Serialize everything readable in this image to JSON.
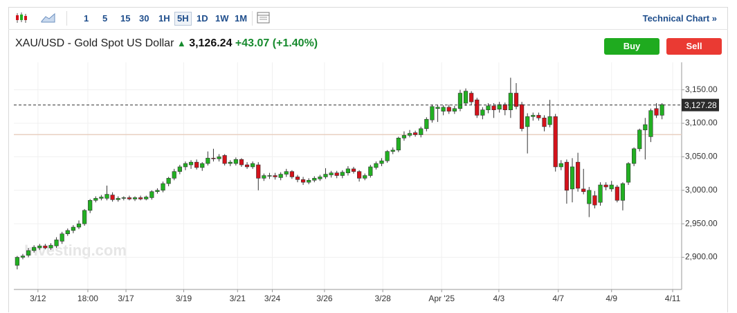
{
  "toolbar": {
    "intervals": [
      "1",
      "5",
      "15",
      "30",
      "1H",
      "5H",
      "1D",
      "1W",
      "1M"
    ],
    "active": "5H",
    "link": "Technical Chart »"
  },
  "instrument": {
    "name": "XAU/USD - Gold Spot US Dollar",
    "price": "3,126.24",
    "change": "+43.07",
    "change_pct": "(+1.40%)"
  },
  "buttons": {
    "buy": "Buy",
    "sell": "Sell"
  },
  "chart_data": {
    "type": "candlestick",
    "watermark": "Investing.com",
    "up_color": "#22b022",
    "down_color": "#d4121b",
    "open": [
      2888,
      2900,
      2903,
      2910,
      2914,
      2917,
      2914,
      2917,
      2924,
      2935,
      2940,
      2945,
      2950,
      2970,
      2985,
      2988,
      2988,
      2993,
      2986,
      2988,
      2989,
      2987,
      2989,
      2987,
      2989,
      2998,
      3000,
      3010,
      3018,
      3028,
      3035,
      3038,
      3042,
      3034,
      3040,
      3048,
      3047,
      3052,
      3040,
      3040,
      3046,
      3038,
      3035,
      3038,
      3018,
      3021,
      3022,
      3019,
      3024,
      3028,
      3020,
      3016,
      3012,
      3015,
      3017,
      3020,
      3023,
      3026,
      3022,
      3026,
      3032,
      3028,
      3018,
      3022,
      3034,
      3040,
      3044,
      3058,
      3060,
      3078,
      3082,
      3086,
      3083,
      3092,
      3105,
      3122,
      3118,
      3124,
      3118,
      3122,
      3130,
      3145,
      3135,
      3112,
      3120,
      3126,
      3121,
      3128,
      3120,
      3145,
      3128,
      3095,
      3110,
      3112,
      3108,
      3098,
      3110,
      3035,
      3042,
      3002,
      3042,
      3002,
      2980,
      2992,
      2982,
      3008,
      3002,
      3005,
      2985,
      3012,
      3040,
      3062,
      3090,
      3080,
      3122,
      3112
    ],
    "high": [
      2902,
      2905,
      2914,
      2918,
      2920,
      2920,
      2921,
      2930,
      2938,
      2943,
      2948,
      2955,
      2972,
      2987,
      2991,
      2993,
      3007,
      2997,
      2991,
      2991,
      2992,
      2991,
      2992,
      2992,
      3000,
      3003,
      3013,
      3020,
      3032,
      3038,
      3043,
      3045,
      3046,
      3042,
      3058,
      3062,
      3054,
      3054,
      3045,
      3049,
      3048,
      3042,
      3043,
      3042,
      3025,
      3026,
      3026,
      3027,
      3032,
      3030,
      3023,
      3020,
      3018,
      3021,
      3023,
      3033,
      3029,
      3029,
      3030,
      3036,
      3035,
      3030,
      3025,
      3038,
      3043,
      3048,
      3060,
      3064,
      3080,
      3088,
      3090,
      3089,
      3095,
      3109,
      3128,
      3128,
      3127,
      3128,
      3126,
      3150,
      3152,
      3148,
      3138,
      3124,
      3130,
      3130,
      3132,
      3131,
      3168,
      3160,
      3132,
      3115,
      3116,
      3116,
      3112,
      3135,
      3114,
      3045,
      3046,
      3048,
      3056,
      3032,
      3005,
      2999,
      3012,
      3012,
      3014,
      3008,
      3012,
      3042,
      3064,
      3092,
      3108,
      3122,
      3130,
      3130
    ],
    "low": [
      2882,
      2897,
      2900,
      2907,
      2911,
      2912,
      2911,
      2914,
      2920,
      2932,
      2936,
      2942,
      2947,
      2966,
      2982,
      2985,
      2985,
      2983,
      2983,
      2985,
      2985,
      2984,
      2985,
      2985,
      2986,
      2995,
      2997,
      3006,
      3015,
      3024,
      3030,
      3032,
      3031,
      3029,
      3037,
      3043,
      3043,
      3037,
      3036,
      3037,
      3035,
      3032,
      3032,
      3000,
      3014,
      3017,
      3016,
      3015,
      3020,
      3017,
      3012,
      3008,
      3009,
      3012,
      3014,
      3017,
      3019,
      3018,
      3018,
      3022,
      3025,
      3013,
      3015,
      3019,
      3031,
      3036,
      3041,
      3054,
      3057,
      3074,
      3079,
      3080,
      3079,
      3088,
      3101,
      3102,
      3112,
      3114,
      3114,
      3118,
      3126,
      3128,
      3108,
      3106,
      3115,
      3108,
      3116,
      3112,
      3108,
      3121,
      3088,
      3055,
      3104,
      3104,
      3088,
      3094,
      3028,
      3030,
      2980,
      2982,
      2998,
      2994,
      2960,
      2973,
      2977,
      3000,
      2998,
      2982,
      2970,
      3008,
      3036,
      3058,
      3046,
      3072,
      3108,
      3106
    ],
    "close": [
      2900,
      2902,
      2910,
      2915,
      2917,
      2914,
      2918,
      2926,
      2935,
      2940,
      2945,
      2950,
      2970,
      2985,
      2988,
      2990,
      2994,
      2986,
      2988,
      2989,
      2987,
      2989,
      2987,
      2990,
      2998,
      3000,
      3010,
      3018,
      3028,
      3035,
      3040,
      3042,
      3034,
      3040,
      3048,
      3047,
      3050,
      3040,
      3042,
      3046,
      3038,
      3035,
      3040,
      3018,
      3022,
      3022,
      3020,
      3024,
      3028,
      3020,
      3016,
      3012,
      3015,
      3018,
      3020,
      3024,
      3026,
      3022,
      3027,
      3032,
      3028,
      3018,
      3022,
      3035,
      3040,
      3044,
      3058,
      3060,
      3078,
      3082,
      3085,
      3083,
      3092,
      3106,
      3125,
      3124,
      3124,
      3118,
      3122,
      3145,
      3148,
      3132,
      3112,
      3120,
      3126,
      3120,
      3128,
      3120,
      3145,
      3125,
      3092,
      3110,
      3112,
      3108,
      3095,
      3110,
      3035,
      3040,
      3000,
      3035,
      3003,
      2998,
      3000,
      2978,
      3008,
      3005,
      3008,
      2985,
      3010,
      3040,
      3062,
      3090,
      3098,
      3119,
      3112,
      3128
    ],
    "xlim": [
      -0.6,
      118.5
    ],
    "xticks": [
      {
        "value": 3.7,
        "label": "3/12"
      },
      {
        "value": 12.6,
        "label": "18:00"
      },
      {
        "value": 19.4,
        "label": "3/17"
      },
      {
        "value": 29.7,
        "label": "3/19"
      },
      {
        "value": 39.3,
        "label": "3/21"
      },
      {
        "value": 45.5,
        "label": "3/24"
      },
      {
        "value": 54.8,
        "label": "3/26"
      },
      {
        "value": 65.2,
        "label": "3/28"
      },
      {
        "value": 75.7,
        "label": "Apr '25"
      },
      {
        "value": 85.9,
        "label": "4/3"
      },
      {
        "value": 96.5,
        "label": "4/7"
      },
      {
        "value": 106,
        "label": "4/9"
      },
      {
        "value": 116.9,
        "label": "4/11"
      }
    ],
    "ylim": [
      2852,
      3191
    ],
    "yticks": [
      {
        "value": 2900,
        "label": "2,900.00"
      },
      {
        "value": 2950,
        "label": "2,950.00"
      },
      {
        "value": 3000,
        "label": "3,000.00"
      },
      {
        "value": 3050,
        "label": "3,050.00"
      },
      {
        "value": 3100,
        "label": "3,100.00"
      },
      {
        "value": 3150,
        "label": "3,150.00"
      }
    ],
    "grid": true,
    "last_price": {
      "value": 3127.28,
      "label": "3,127.28"
    },
    "reference_line": 3083.17
  }
}
